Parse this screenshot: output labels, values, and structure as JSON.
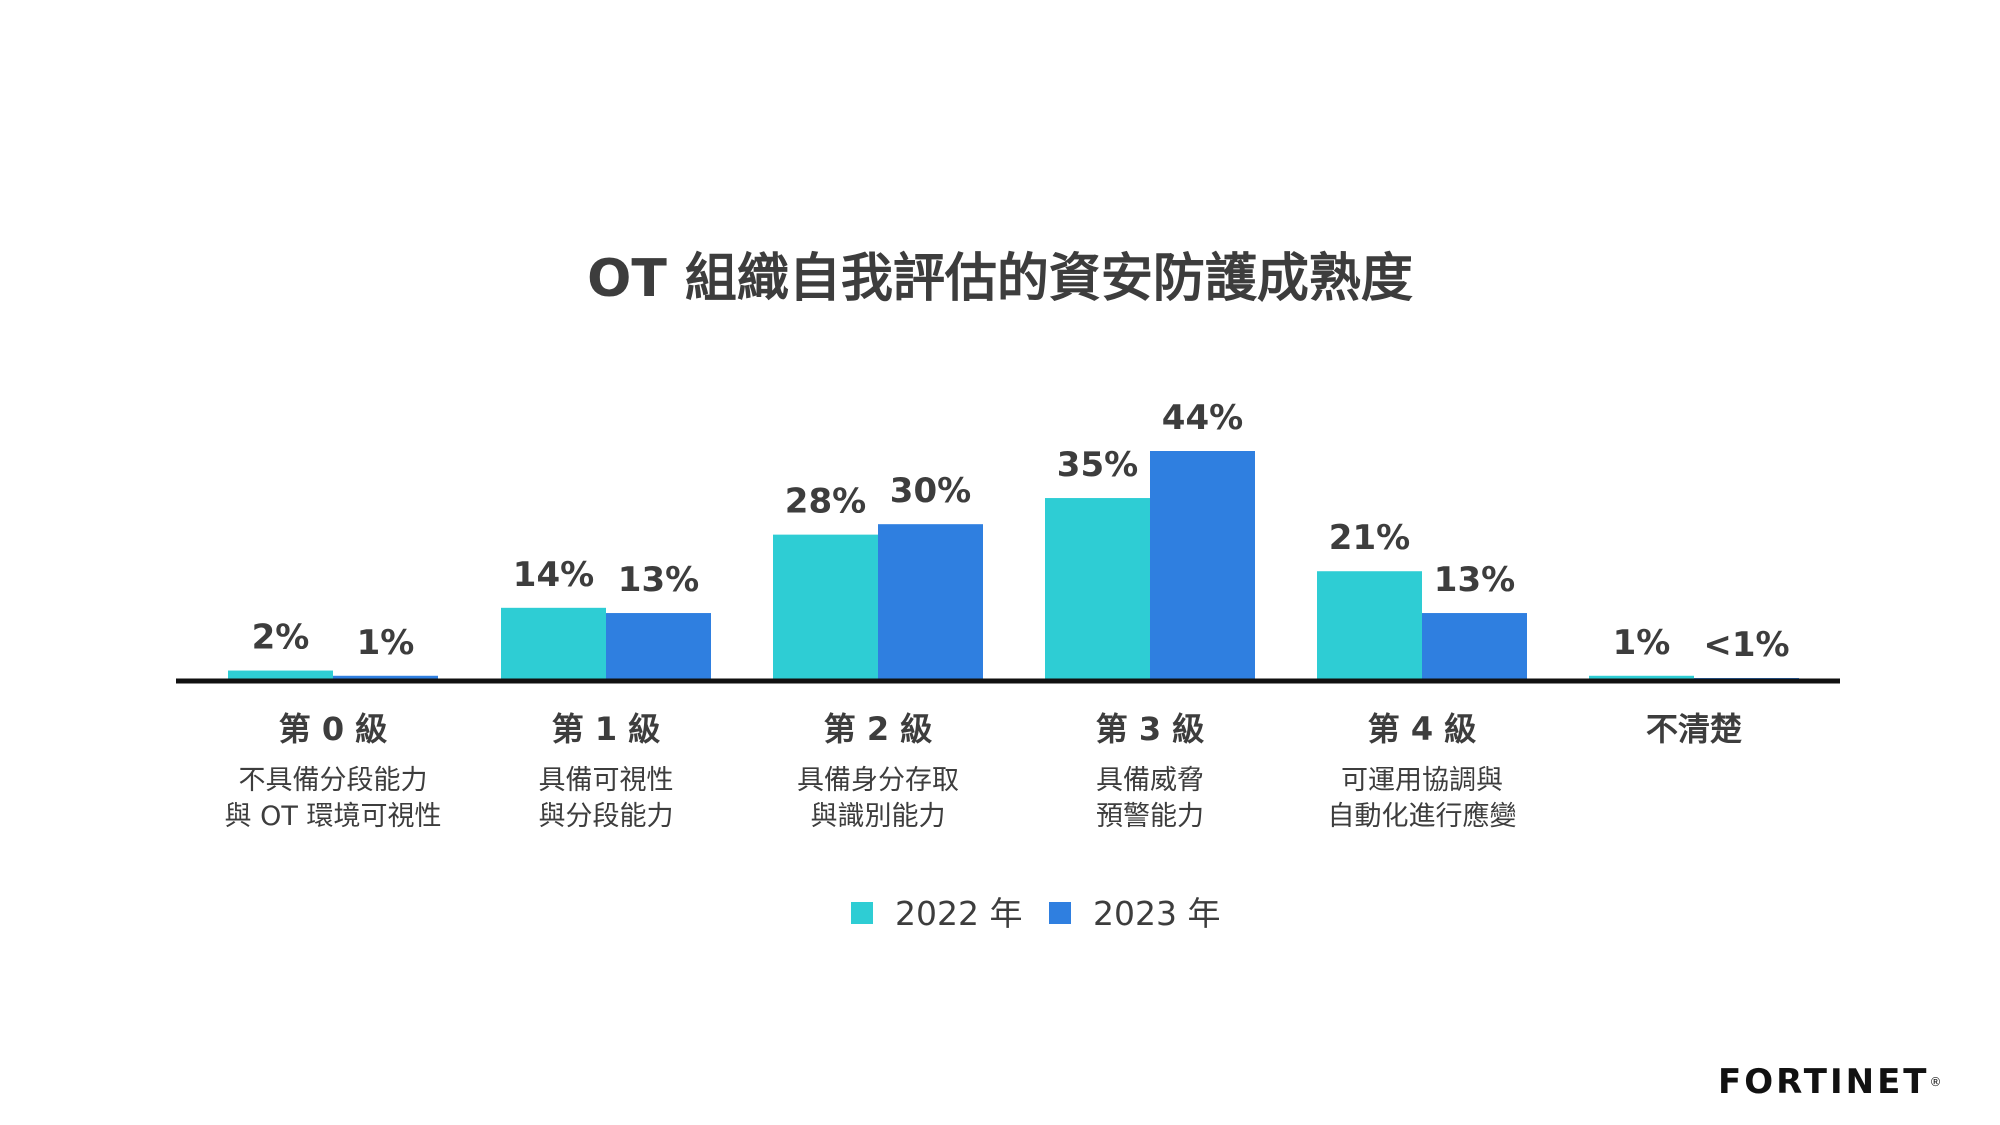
{
  "brand": {
    "logo_text": "FORTINET",
    "logo_mark": "®"
  },
  "colors": {
    "series_2022": "#2ecdd4",
    "series_2023": "#2f7fe0",
    "axis": "#111111",
    "text": "#3d3d3d"
  },
  "chart_data": {
    "type": "bar",
    "title": "OT 組織自我評估的資安防護成熟度",
    "xlabel": "",
    "ylabel": "",
    "ylim": [
      0,
      44
    ],
    "grid": false,
    "legend_position": "bottom-center",
    "categories": [
      {
        "level": "第 0 級",
        "desc": [
          "不具備分段能力",
          "與 OT 環境可視性"
        ]
      },
      {
        "level": "第 1 級",
        "desc": [
          "具備可視性",
          "與分段能力"
        ]
      },
      {
        "level": "第 2 級",
        "desc": [
          "具備身分存取",
          "與識別能力"
        ]
      },
      {
        "level": "第 3 級",
        "desc": [
          "具備威脅",
          "預警能力"
        ]
      },
      {
        "level": "第 4 級",
        "desc": [
          "可運用協調與",
          "自動化進行應變"
        ]
      },
      {
        "level": "不清楚",
        "desc": []
      }
    ],
    "series": [
      {
        "name": "2022 年",
        "values": [
          2,
          14,
          28,
          35,
          21,
          1
        ],
        "labels": [
          "2%",
          "14%",
          "28%",
          "35%",
          "21%",
          "1%"
        ]
      },
      {
        "name": "2023 年",
        "values": [
          1,
          13,
          30,
          44,
          13,
          0.5
        ],
        "labels": [
          "1%",
          "13%",
          "30%",
          "44%",
          "13%",
          "<1%"
        ]
      }
    ]
  }
}
